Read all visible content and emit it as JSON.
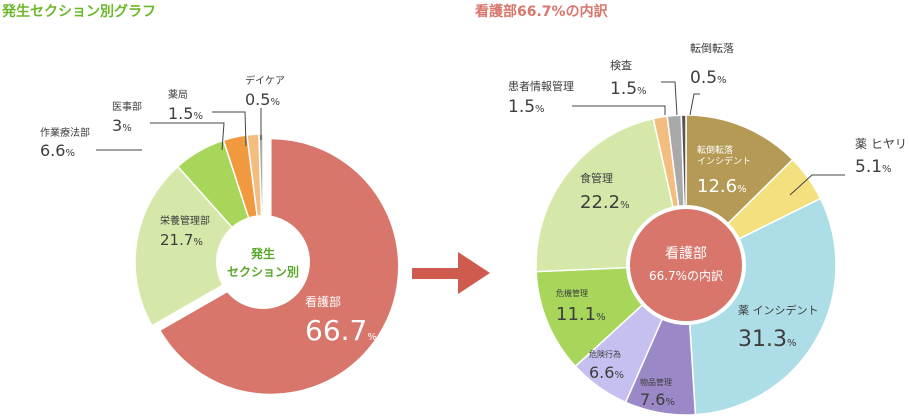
{
  "chart_data": [
    {
      "type": "pie",
      "title": "発生セクション別グラフ",
      "center_label": [
        "発生",
        "セクション別"
      ],
      "slices": [
        {
          "name": "看護部",
          "value": 66.7,
          "color": "#d8766b"
        },
        {
          "name": "栄養管理部",
          "value": 21.7,
          "color": "#d5e8a9"
        },
        {
          "name": "作業療法部",
          "value": 6.6,
          "color": "#a7d65a"
        },
        {
          "name": "医事部",
          "value": 3,
          "color": "#f0993f"
        },
        {
          "name": "薬局",
          "value": 1.5,
          "color": "#f4bd80"
        },
        {
          "name": "デイケア",
          "value": 0.5,
          "color": "#a9a9a9"
        }
      ],
      "value_labels": [
        "66.7",
        "21.7",
        "6.6",
        "3",
        "1.5",
        "0.5"
      ],
      "unit": "%"
    },
    {
      "type": "pie",
      "title": "看護部66.7%の内訳",
      "center_label": [
        "看護部",
        "66.7%の内訳"
      ],
      "slices": [
        {
          "name": "転倒転落 インシデント",
          "value": 12.6,
          "color": "#b49a55"
        },
        {
          "name": "薬 ヒヤリ",
          "value": 5.1,
          "color": "#f5e07f"
        },
        {
          "name": "薬 インシデント",
          "value": 31.3,
          "color": "#addde6"
        },
        {
          "name": "物品管理",
          "value": 7.6,
          "color": "#9a89c6"
        },
        {
          "name": "危険行為",
          "value": 6.6,
          "color": "#c5c0ef"
        },
        {
          "name": "危機管理",
          "value": 11.1,
          "color": "#a7d65a"
        },
        {
          "name": "食管理",
          "value": 22.2,
          "color": "#d5e8a9"
        },
        {
          "name": "患者情報管理",
          "value": 1.5,
          "color": "#f4bd80"
        },
        {
          "name": "検査",
          "value": 1.5,
          "color": "#a9a9a9"
        },
        {
          "name": "転倒転落",
          "value": 0.5,
          "color": "#555555"
        }
      ],
      "value_labels": [
        "12.6",
        "5.1",
        "31.3",
        "7.6",
        "6.6",
        "11.1",
        "22.2",
        "1.5",
        "1.5",
        "0.5"
      ],
      "unit": "%"
    }
  ],
  "colors": {
    "title_left": "#6bb82a",
    "title_right": "#d8766b",
    "arrow": "#cf5b4e",
    "center_left_fill": "#ffffff",
    "center_right_fill": "#d8766b"
  }
}
